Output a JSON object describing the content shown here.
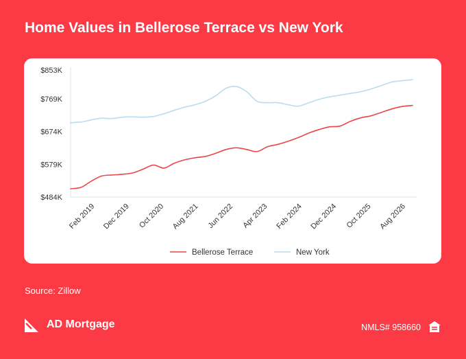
{
  "header": {
    "title": "Home Values in Bellerose Terrace vs New York"
  },
  "footer": {
    "source": "Source: Zillow",
    "brand": "AD Mortgage",
    "nmls": "NMLS# 958660",
    "logo_icon": "ad-mortgage-logo-icon",
    "equal_housing_icon": "equal-housing-icon"
  },
  "colors": {
    "background": "#fb3a46",
    "bellerose": "#e8454c",
    "newyork": "#b9dcef",
    "axis_text": "#333333",
    "grid_axis": "#e0e0e0"
  },
  "chart_data": {
    "type": "line",
    "title": "Home Values in Bellerose Terrace vs New York",
    "xlabel": "",
    "ylabel": "",
    "x": [
      2018.5,
      2018.75,
      2019.0,
      2019.25,
      2019.5,
      2019.75,
      2020.0,
      2020.25,
      2020.5,
      2020.75,
      2021.0,
      2021.25,
      2021.5,
      2021.75,
      2022.0,
      2022.25,
      2022.5,
      2022.75,
      2023.0,
      2023.25,
      2023.5,
      2023.75,
      2024.0,
      2024.25,
      2024.5,
      2024.75,
      2025.0,
      2025.25,
      2025.5,
      2025.75,
      2026.0,
      2026.25,
      2026.5,
      2026.75
    ],
    "xlim": [
      2018.5,
      2026.75
    ],
    "x_ticks": [
      {
        "value": 2019.083,
        "label": "Feb 2019"
      },
      {
        "value": 2019.917,
        "label": "Dec 2019"
      },
      {
        "value": 2020.75,
        "label": "Oct 2020"
      },
      {
        "value": 2021.583,
        "label": "Aug 2021"
      },
      {
        "value": 2022.417,
        "label": "Jun 2022"
      },
      {
        "value": 2023.25,
        "label": "Apr 2023"
      },
      {
        "value": 2024.083,
        "label": "Feb 2024"
      },
      {
        "value": 2024.917,
        "label": "Dec 2024"
      },
      {
        "value": 2025.75,
        "label": "Oct 2025"
      },
      {
        "value": 2026.583,
        "label": "Aug 2026"
      }
    ],
    "y_ticks": [
      {
        "value": 484,
        "label": "$484K"
      },
      {
        "value": 579,
        "label": "$579K"
      },
      {
        "value": 674,
        "label": "$674K"
      },
      {
        "value": 769,
        "label": "$769K"
      },
      {
        "value": 853,
        "label": "$853K"
      }
    ],
    "ylim": [
      484,
      853
    ],
    "grid": false,
    "legend_position": "bottom-center",
    "series": [
      {
        "name": "Bellerose Terrace",
        "color": "#e8454c",
        "values": [
          508,
          512,
          530,
          545,
          548,
          550,
          554,
          565,
          577,
          568,
          582,
          592,
          598,
          602,
          611,
          622,
          627,
          622,
          616,
          630,
          637,
          646,
          657,
          670,
          680,
          688,
          690,
          704,
          714,
          720,
          730,
          740,
          747,
          750
        ]
      },
      {
        "name": "New York",
        "color": "#b9dcef",
        "values": [
          700,
          702,
          708,
          713,
          712,
          716,
          717,
          716,
          718,
          726,
          736,
          745,
          752,
          762,
          778,
          800,
          805,
          790,
          762,
          758,
          758,
          752,
          748,
          758,
          768,
          775,
          780,
          785,
          790,
          798,
          808,
          818,
          822,
          825
        ]
      }
    ]
  }
}
